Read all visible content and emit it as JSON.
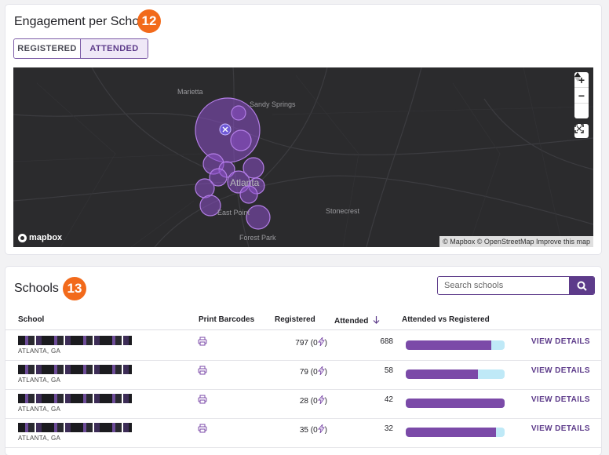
{
  "engagement": {
    "title": "Engagement per School",
    "badge": "12",
    "toggle": {
      "registered": "REGISTERED",
      "attended": "ATTENDED",
      "active": "attended"
    },
    "map": {
      "labels": {
        "marietta": "Marietta",
        "sandy_springs": "Sandy Springs",
        "atlanta": "Atlanta",
        "east_point": "East Point",
        "stonecrest": "Stonecrest",
        "forest_park": "Forest Park"
      },
      "logo": "mapbox",
      "attribution": "© Mapbox © OpenStreetMap Improve this map",
      "bubble_color": "#8a4fc7"
    }
  },
  "schools": {
    "title": "Schools",
    "badge": "13",
    "search": {
      "placeholder": "Search schools"
    },
    "columns": {
      "school": "School",
      "print": "Print Barcodes",
      "registered": "Registered",
      "attended": "Attended",
      "ratio": "Attended vs Registered"
    },
    "rows": [
      {
        "city": "ATLANTA, GA",
        "registered": "797 (0",
        "attended": "688",
        "ratio": 0.863,
        "action": "VIEW DETAILS"
      },
      {
        "city": "ATLANTA, GA",
        "registered": "79 (0",
        "attended": "58",
        "ratio": 0.734,
        "action": "VIEW DETAILS"
      },
      {
        "city": "ATLANTA, GA",
        "registered": "28 (0",
        "attended": "42",
        "ratio": 1.0,
        "action": "VIEW DETAILS"
      },
      {
        "city": "ATLANTA, GA",
        "registered": "35 (0",
        "attended": "32",
        "ratio": 0.914,
        "action": "VIEW DETAILS"
      }
    ],
    "registered_suffix": ")",
    "colors": {
      "accent": "#5d3b8a",
      "bar_fill": "#7b4aa8",
      "bar_track": "#bfe9f7",
      "badge": "#f26a1b"
    }
  }
}
